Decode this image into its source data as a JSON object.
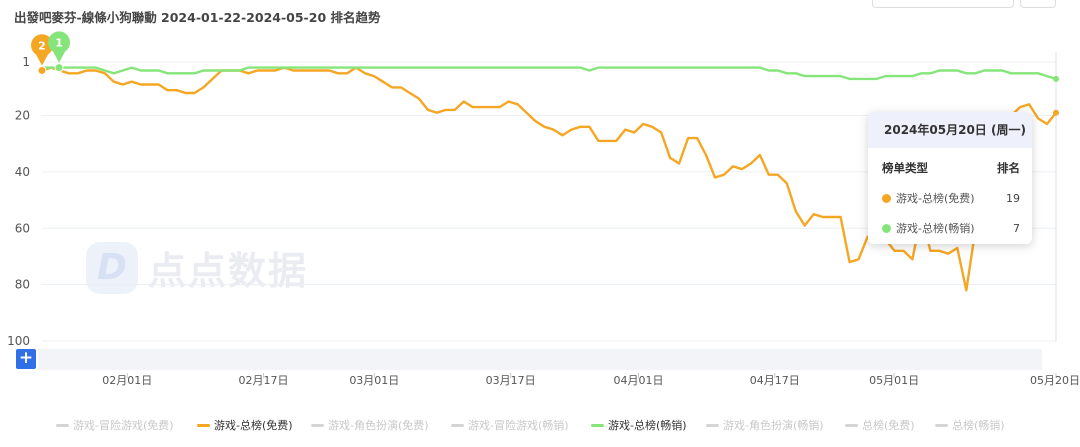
{
  "title": "出發吧麥芬-線條小狗聯動 2024-01-22-2024-05-20 排名趋势",
  "watermark": {
    "brand": "点点数据",
    "logo_glyph": "D"
  },
  "tooltip": {
    "date": "2024年05月20日 (周一)",
    "col_type": "榜单类型",
    "col_rank": "排名",
    "rows": [
      {
        "name": "游戏-总榜(免费)",
        "value": "19",
        "color": "#f5a623"
      },
      {
        "name": "游戏-总榜(畅销)",
        "value": "7",
        "color": "#86e57a"
      }
    ]
  },
  "controls": {
    "add_label": "+"
  },
  "legend": [
    {
      "label": "游戏-冒险游戏(免费)",
      "active": false,
      "color": "#d5d5d5"
    },
    {
      "label": "游戏-总榜(免费)",
      "active": true,
      "color": "#f5a623"
    },
    {
      "label": "游戏-角色扮演(免费)",
      "active": false,
      "color": "#d5d5d5"
    },
    {
      "label": "游戏-冒险游戏(畅销)",
      "active": false,
      "color": "#d5d5d5"
    },
    {
      "label": "游戏-总榜(畅销)",
      "active": true,
      "color": "#86e57a"
    },
    {
      "label": "游戏-角色扮演(畅销)",
      "active": false,
      "color": "#d5d5d5"
    },
    {
      "label": "总榜(免费)",
      "active": false,
      "color": "#d5d5d5"
    },
    {
      "label": "总榜(畅销)",
      "active": false,
      "color": "#d5d5d5"
    }
  ],
  "chart_data": {
    "type": "line",
    "title": "出發吧麥芬-線條小狗聯動 2024-01-22-2024-05-20 排名趋势",
    "x_start": "2024-01-22",
    "x_end": "2024-05-20",
    "x_tick_labels": [
      "02月01日",
      "02月17日",
      "03月01日",
      "03月17日",
      "04月01日",
      "04月17日",
      "05月01日",
      "05月20日"
    ],
    "x_ticks": [
      "2024-02-01",
      "2024-02-17",
      "2024-03-01",
      "2024-03-17",
      "2024-04-01",
      "2024-04-17",
      "2024-05-01",
      "2024-05-20"
    ],
    "y_inverted": true,
    "ylim": [
      1,
      100
    ],
    "y_tick_labels": [
      "1",
      "20",
      "40",
      "60",
      "80",
      "100"
    ],
    "y_ticks": [
      1,
      20,
      40,
      60,
      80,
      100
    ],
    "grid": true,
    "series": [
      {
        "name": "游戏-总榜(免费)",
        "color": "#f5a623",
        "marker": {
          "label": "2",
          "x": "2024-01-22",
          "y": 4
        },
        "values": [
          4,
          3,
          4,
          5,
          5,
          4,
          4,
          5,
          8,
          9,
          8,
          9,
          9,
          9,
          11,
          11,
          12,
          12,
          10,
          7,
          4,
          4,
          4,
          5,
          4,
          4,
          4,
          3,
          4,
          4,
          4,
          4,
          4,
          5,
          5,
          3,
          5,
          6,
          8,
          10,
          10,
          12,
          14,
          18,
          19,
          18,
          18,
          15,
          17,
          17,
          17,
          17,
          15,
          16,
          19,
          22,
          24,
          25,
          27,
          25,
          24,
          24,
          29,
          29,
          29,
          25,
          26,
          23,
          24,
          26,
          35,
          37,
          28,
          28,
          34,
          42,
          41,
          38,
          39,
          37,
          34,
          41,
          41,
          44,
          54,
          59,
          55,
          56,
          56,
          56,
          72,
          71,
          63,
          64,
          64,
          68,
          68,
          71,
          55,
          68,
          68,
          69,
          67,
          82,
          61,
          59,
          45,
          28,
          20,
          17,
          16,
          21,
          23,
          19
        ]
      },
      {
        "name": "游戏-总榜(畅销)",
        "color": "#86e57a",
        "marker": {
          "label": "1",
          "x": "2024-01-24",
          "y": 3
        },
        "values": [
          3,
          3,
          3,
          3,
          3,
          3,
          3,
          4,
          5,
          4,
          3,
          4,
          4,
          4,
          5,
          5,
          5,
          5,
          4,
          4,
          4,
          4,
          4,
          3,
          3,
          3,
          3,
          3,
          3,
          3,
          3,
          3,
          3,
          3,
          3,
          3,
          3,
          3,
          3,
          3,
          3,
          3,
          3,
          3,
          3,
          3,
          3,
          3,
          3,
          3,
          3,
          3,
          3,
          3,
          3,
          3,
          3,
          3,
          3,
          3,
          3,
          4,
          3,
          3,
          3,
          3,
          3,
          3,
          3,
          3,
          3,
          3,
          3,
          3,
          3,
          3,
          3,
          3,
          3,
          3,
          3,
          4,
          4,
          5,
          5,
          6,
          6,
          6,
          6,
          6,
          7,
          7,
          7,
          7,
          6,
          6,
          6,
          6,
          5,
          5,
          4,
          4,
          4,
          5,
          5,
          4,
          4,
          4,
          5,
          5,
          5,
          5,
          6,
          7
        ]
      }
    ]
  }
}
